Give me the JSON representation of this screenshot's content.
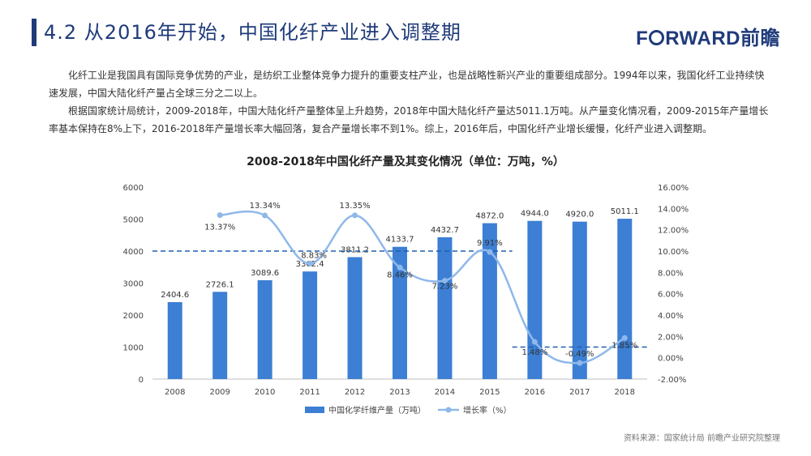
{
  "header": {
    "title": "4.2 从2016年开始，中国化纤产业进入调整期",
    "brand_text": "FORWARD前瞻"
  },
  "body": {
    "paragraph1": "化纤工业是我国具有国际竞争优势的产业，是纺织工业整体竞争力提升的重要支柱产业，也是战略性新兴产业的重要组成部分。1994年以来，我国化纤工业持续快速发展，中国大陆化纤产量占全球三分之二以上。",
    "paragraph2": "根据国家统计局统计，2009-2018年，中国大陆化纤产量整体呈上升趋势，2018年中国大陆化纤产量达5011.1万吨。从产量变化情况看，2009-2015年产量增长率基本保持在8%上下，2016-2018年产量增长率大幅回落，复合产量增长率不到1%。综上，2016年后，中国化纤产业增长缓慢，化纤产业进入调整期。"
  },
  "colors": {
    "title": "#1f3b7a",
    "bar": "#3c7fd4",
    "line": "#8fb8ea",
    "dashed": "#1f5fb0"
  },
  "chart_data": {
    "type": "bar",
    "title": "2008-2018年中国化纤产量及其变化情况（单位：万吨，%）",
    "categories": [
      "2008",
      "2009",
      "2010",
      "2011",
      "2012",
      "2013",
      "2014",
      "2015",
      "2016",
      "2017",
      "2018"
    ],
    "series": [
      {
        "name": "中国化学纤维产量（万吨）",
        "type": "bar",
        "axis": "left",
        "values": [
          2404.6,
          2726.1,
          3089.6,
          3362.4,
          3811.2,
          4133.7,
          4432.7,
          4872.0,
          4944.0,
          4920.0,
          5011.1
        ],
        "labels": [
          "2404.6",
          "2726.1",
          "3089.6",
          "3362.4",
          "3811.2",
          "4133.7",
          "4432.7",
          "4872.0",
          "4944.0",
          "4920.0",
          "5011.1"
        ]
      },
      {
        "name": "增长率（%）",
        "type": "line",
        "axis": "right",
        "values": [
          null,
          13.37,
          13.34,
          8.83,
          13.35,
          8.46,
          7.23,
          9.91,
          1.48,
          -0.49,
          1.85
        ],
        "labels": [
          null,
          "13.37%",
          "13.34%",
          "8.83%",
          "13.35%",
          "8.46%",
          "7.23%",
          "9.91%",
          "1.48%",
          "-0.49%",
          "1.85%"
        ]
      }
    ],
    "y_left": {
      "min": 0,
      "max": 6000,
      "ticks": [
        "0",
        "1000",
        "2000",
        "3000",
        "4000",
        "5000",
        "6000"
      ]
    },
    "y_right": {
      "min": -2,
      "max": 16,
      "ticks": [
        "-2.00%",
        "0.00%",
        "2.00%",
        "4.00%",
        "6.00%",
        "8.00%",
        "10.00%",
        "12.00%",
        "14.00%",
        "16.00%"
      ]
    },
    "annotations": [
      {
        "type": "dashed-hline",
        "axis": "right",
        "value": 10,
        "from": "2008",
        "to": "2015"
      },
      {
        "type": "dashed-hline",
        "axis": "right",
        "value": 1,
        "from": "2016",
        "to": "2018"
      }
    ],
    "legend_position": "bottom",
    "grid": false
  },
  "footer": {
    "source": "资料来源：国家统计局 前瞻产业研究院整理"
  }
}
